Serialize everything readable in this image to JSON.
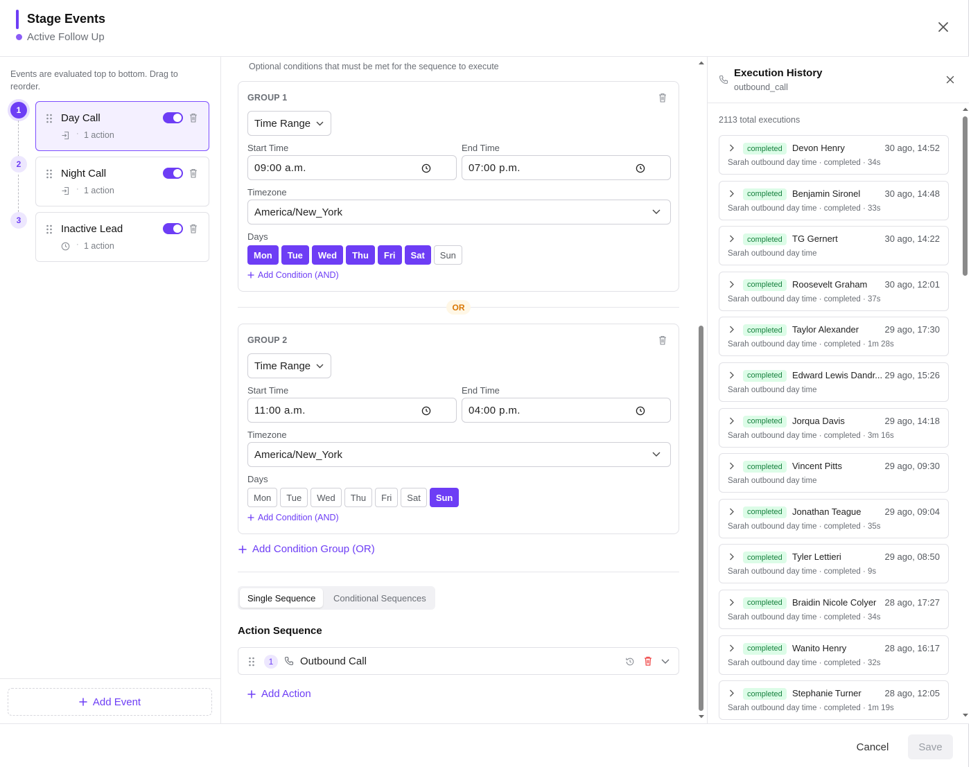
{
  "header": {
    "title": "Stage Events",
    "subtitle": "Active Follow Up"
  },
  "events_panel": {
    "hint": "Events are evaluated top to bottom. Drag to reorder.",
    "events": [
      {
        "number": "1",
        "name": "Day Call",
        "meta": "1 action",
        "enabled": true
      },
      {
        "number": "2",
        "name": "Night Call",
        "meta": "1 action",
        "enabled": true
      },
      {
        "number": "3",
        "name": "Inactive Lead",
        "meta": "1 action",
        "enabled": true
      }
    ],
    "add_event_label": "Add Event"
  },
  "conditions": {
    "note": "Optional conditions that must be met for the sequence to execute",
    "groups": [
      {
        "title": "GROUP 1",
        "type": "Time Range",
        "start_label": "Start Time",
        "start_value": "09:00 a.m.",
        "end_label": "End Time",
        "end_value": "07:00 p.m.",
        "timezone_label": "Timezone",
        "timezone": "America/New_York",
        "days_label": "Days",
        "days": [
          "Mon",
          "Tue",
          "Wed",
          "Thu",
          "Fri",
          "Sat",
          "Sun"
        ],
        "add_condition": "Add Condition (AND)"
      },
      {
        "title": "GROUP 2",
        "type": "Time Range",
        "start_label": "Start Time",
        "start_value": "11:00 a.m.",
        "end_label": "End Time",
        "end_value": "04:00 p.m.",
        "timezone_label": "Timezone",
        "timezone": "America/New_York",
        "days_label": "Days",
        "days": [
          "Mon",
          "Tue",
          "Wed",
          "Thu",
          "Fri",
          "Sat",
          "Sun"
        ],
        "add_condition": "Add Condition (AND)"
      }
    ],
    "or_label": "OR",
    "add_group_label": "Add Condition Group (OR)"
  },
  "sequence": {
    "tabs": [
      "Single Sequence",
      "Conditional Sequences"
    ],
    "active_tab": "Single Sequence",
    "title": "Action Sequence",
    "action": {
      "number": "1",
      "label": "Outbound Call"
    },
    "add_action_label": "Add Action"
  },
  "history": {
    "title": "Execution History",
    "subtitle": "outbound_call",
    "total": "2113 total executions",
    "items": [
      {
        "status": "completed",
        "name": "Devon Henry",
        "time": "30 ago, 14:52",
        "detail": "Sarah outbound day time · completed · 34s"
      },
      {
        "status": "completed",
        "name": "Benjamin Sironel",
        "time": "30 ago, 14:48",
        "detail": "Sarah outbound day time · completed · 33s"
      },
      {
        "status": "completed",
        "name": "TG Gernert",
        "time": "30 ago, 14:22",
        "detail": "Sarah outbound day time"
      },
      {
        "status": "completed",
        "name": "Roosevelt Graham",
        "time": "30 ago, 12:01",
        "detail": "Sarah outbound day time · completed · 37s"
      },
      {
        "status": "completed",
        "name": "Taylor Alexander",
        "time": "29 ago, 17:30",
        "detail": "Sarah outbound day time · completed · 1m 28s"
      },
      {
        "status": "completed",
        "name": "Edward Lewis Dandr...",
        "time": "29 ago, 15:26",
        "detail": "Sarah outbound day time"
      },
      {
        "status": "completed",
        "name": "Jorqua Davis",
        "time": "29 ago, 14:18",
        "detail": "Sarah outbound day time · completed · 3m 16s"
      },
      {
        "status": "completed",
        "name": "Vincent Pitts",
        "time": "29 ago, 09:30",
        "detail": "Sarah outbound day time"
      },
      {
        "status": "completed",
        "name": "Jonathan Teague",
        "time": "29 ago, 09:04",
        "detail": "Sarah outbound day time · completed · 35s"
      },
      {
        "status": "completed",
        "name": "Tyler Lettieri",
        "time": "29 ago, 08:50",
        "detail": "Sarah outbound day time · completed · 9s"
      },
      {
        "status": "completed",
        "name": "Braidin Nicole Colyer",
        "time": "28 ago, 17:27",
        "detail": "Sarah outbound day time · completed · 34s"
      },
      {
        "status": "completed",
        "name": "Wanito Henry",
        "time": "28 ago, 16:17",
        "detail": "Sarah outbound day time · completed · 32s"
      },
      {
        "status": "completed",
        "name": "Stephanie Turner",
        "time": "28 ago, 12:05",
        "detail": "Sarah outbound day time · completed · 1m 19s"
      }
    ]
  },
  "footer": {
    "cancel_label": "Cancel",
    "save_label": "Save"
  },
  "colors": {
    "accent": "#6d3df5",
    "status_bg": "#dcfce7",
    "status_text": "#15803d",
    "or_text": "#d97706"
  },
  "icons": [
    "close-icon",
    "drag-handle-icon",
    "trash-icon",
    "chevron-down-icon",
    "clock-icon",
    "plus-icon",
    "phone-icon",
    "history-icon",
    "chevron-right-icon",
    "login-icon"
  ]
}
